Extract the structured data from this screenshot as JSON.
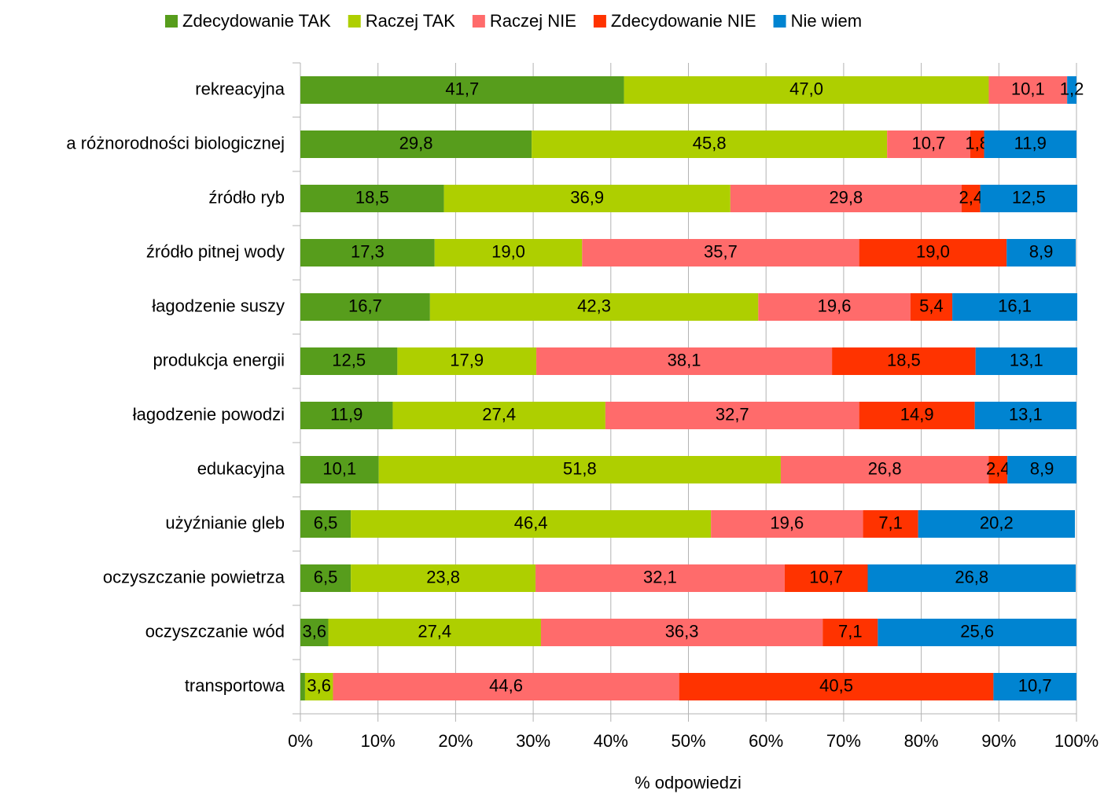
{
  "chart_data": {
    "type": "stacked_barh",
    "x_label": "% odpowiedzi",
    "categories": [
      "rekreacyjna",
      "a różnorodności biologicznej",
      "źródło ryb",
      "źródło pitnej wody",
      "łagodzenie suszy",
      "produkcja energii",
      "łagodzenie powodzi",
      "edukacyjna",
      "użyźnianie gleb",
      "oczyszczanie powietrza",
      "oczyszczanie wód",
      "transportowa"
    ],
    "series": [
      {
        "name": "Zdecydowanie TAK",
        "color": "#579d1c",
        "values": [
          41.7,
          29.8,
          18.5,
          17.3,
          16.7,
          12.5,
          11.9,
          10.1,
          6.5,
          6.5,
          3.6,
          0.6
        ],
        "value_labels": [
          "41,7",
          "29,8",
          "18,5",
          "17,3",
          "16,7",
          "12,5",
          "11,9",
          "10,1",
          "6,5",
          "6,5",
          "3,6",
          null
        ]
      },
      {
        "name": "Raczej TAK",
        "color": "#aecf00",
        "values": [
          47.0,
          45.8,
          36.9,
          19.0,
          42.3,
          17.9,
          27.4,
          51.8,
          46.4,
          23.8,
          27.4,
          3.6
        ],
        "value_labels": [
          "47,0",
          "45,8",
          "36,9",
          "19,0",
          "42,3",
          "17,9",
          "27,4",
          "51,8",
          "46,4",
          "23,8",
          "27,4",
          "3,6"
        ]
      },
      {
        "name": "Raczej NIE",
        "color": "#ff6b6b",
        "values": [
          10.1,
          10.7,
          29.8,
          35.7,
          19.6,
          38.1,
          32.7,
          26.8,
          19.6,
          32.1,
          36.3,
          44.6
        ],
        "value_labels": [
          "10,1",
          "10,7",
          "29,8",
          "35,7",
          "19,6",
          "38,1",
          "32,7",
          "26,8",
          "19,6",
          "32,1",
          "36,3",
          "44,6"
        ]
      },
      {
        "name": "Zdecydowanie NIE",
        "color": "#ff3300",
        "values": [
          0,
          1.8,
          2.4,
          19.0,
          5.4,
          18.5,
          14.9,
          2.4,
          7.1,
          10.7,
          7.1,
          40.5
        ],
        "value_labels": [
          null,
          "1,8",
          "2,4",
          "19,0",
          "5,4",
          "18,5",
          "14,9",
          "2,4",
          "7,1",
          "10,7",
          "7,1",
          "40,5"
        ]
      },
      {
        "name": "Nie wiem",
        "color": "#0084d1",
        "values": [
          1.2,
          11.9,
          12.5,
          8.9,
          16.1,
          13.1,
          13.1,
          8.9,
          20.2,
          26.8,
          25.6,
          10.7
        ],
        "value_labels": [
          "1,2",
          "11,9",
          "12,5",
          "8,9",
          "16,1",
          "13,1",
          "13,1",
          "8,9",
          "20,2",
          "26,8",
          "25,6",
          "10,7"
        ]
      }
    ],
    "xlim": [
      0,
      100
    ],
    "xticks": [
      {
        "value": 0,
        "label": "0%"
      },
      {
        "value": 10,
        "label": "10%"
      },
      {
        "value": 20,
        "label": "20%"
      },
      {
        "value": 30,
        "label": "30%"
      },
      {
        "value": 40,
        "label": "40%"
      },
      {
        "value": 50,
        "label": "50%"
      },
      {
        "value": 60,
        "label": "60%"
      },
      {
        "value": 70,
        "label": "70%"
      },
      {
        "value": 80,
        "label": "80%"
      },
      {
        "value": 90,
        "label": "90%"
      },
      {
        "value": 100,
        "label": "100%"
      }
    ],
    "grid": true,
    "legend": "top"
  }
}
